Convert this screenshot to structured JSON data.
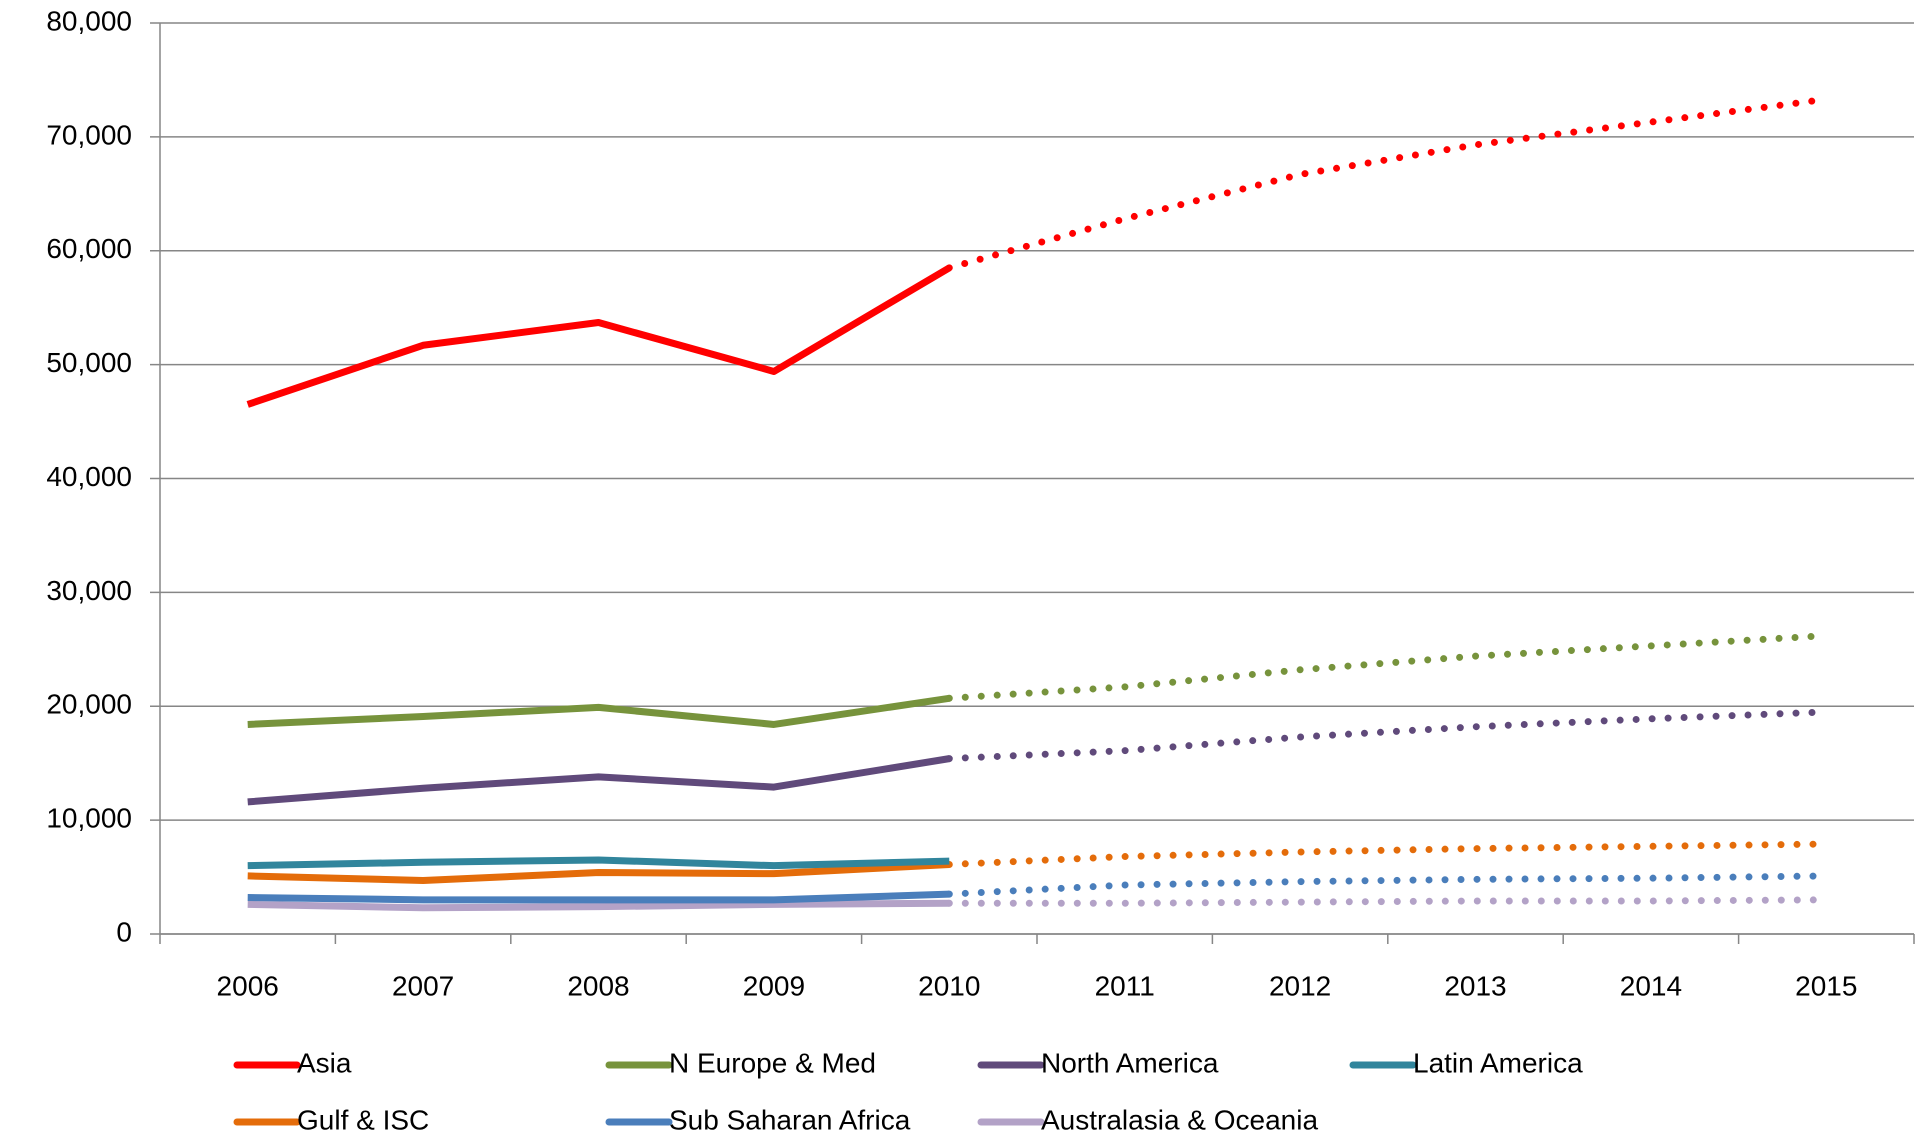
{
  "chart_data": {
    "type": "line",
    "categories": [
      "2006",
      "2007",
      "2008",
      "2009",
      "2010",
      "2011",
      "2012",
      "2013",
      "2014",
      "2015"
    ],
    "ylim": [
      0,
      80000
    ],
    "yticks": [
      0,
      {
        "value": 10000,
        "label": "10,000"
      },
      {
        "value": 20000,
        "label": "20,000"
      },
      {
        "value": 30000,
        "label": "30,000"
      },
      {
        "value": 40000,
        "label": "40,000"
      },
      {
        "value": 50000,
        "label": "50,000"
      },
      {
        "value": 60000,
        "label": "60,000"
      },
      {
        "value": 70000,
        "label": "70,000"
      },
      {
        "value": 80000,
        "label": "80,000"
      }
    ],
    "grid": true,
    "series": [
      {
        "name": "Asia",
        "color": "#ff0000",
        "values": [
          46500,
          51700,
          53700,
          49400,
          58500,
          null,
          null,
          null,
          null,
          null
        ],
        "forecast": [
          null,
          null,
          null,
          null,
          58500,
          62800,
          66700,
          69300,
          71300,
          73300
        ]
      },
      {
        "name": "N Europe & Med",
        "color": "#77933c",
        "values": [
          18400,
          19100,
          19900,
          18400,
          20700,
          null,
          null,
          null,
          null,
          null
        ],
        "forecast": [
          null,
          null,
          null,
          null,
          20700,
          21700,
          23200,
          24400,
          25300,
          26200
        ]
      },
      {
        "name": "North America",
        "color": "#604a7b",
        "values": [
          11600,
          12800,
          13800,
          12900,
          15400,
          null,
          null,
          null,
          null,
          null
        ],
        "forecast": [
          null,
          null,
          null,
          null,
          15400,
          16100,
          17300,
          18200,
          18900,
          19500
        ]
      },
      {
        "name": "Latin America",
        "color": "#31859c",
        "values": [
          6000,
          6300,
          6500,
          6000,
          6400,
          null,
          null,
          null,
          null,
          null
        ],
        "forecast": [
          null,
          null,
          null,
          null,
          null,
          null,
          null,
          null,
          null,
          null
        ]
      },
      {
        "name": "Gulf & ISC",
        "color": "#e46c0a",
        "values": [
          5100,
          4700,
          5400,
          5300,
          6100,
          null,
          null,
          null,
          null,
          null
        ],
        "forecast": [
          null,
          null,
          null,
          null,
          6100,
          6800,
          7200,
          7500,
          7700,
          7900
        ]
      },
      {
        "name": "Sub Saharan Africa",
        "color": "#4a7ebb",
        "values": [
          3200,
          3000,
          3000,
          3000,
          3500,
          null,
          null,
          null,
          null,
          null
        ],
        "forecast": [
          null,
          null,
          null,
          null,
          3500,
          4300,
          4600,
          4800,
          4900,
          5100
        ]
      },
      {
        "name": "Australasia & Oceania",
        "color": "#b3a2c7",
        "values": [
          2600,
          2300,
          2400,
          2600,
          2700,
          null,
          null,
          null,
          null,
          null
        ],
        "forecast": [
          null,
          null,
          null,
          null,
          2700,
          2700,
          2800,
          2900,
          2900,
          3000
        ]
      }
    ]
  }
}
